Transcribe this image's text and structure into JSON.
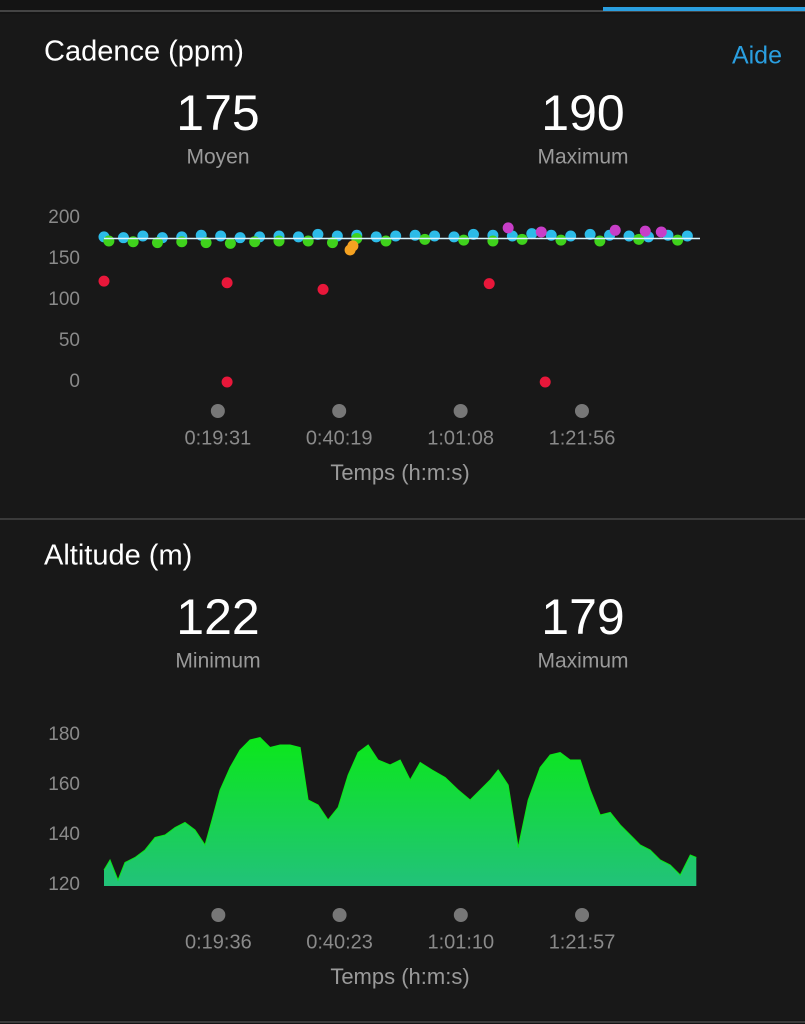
{
  "help": "Aide",
  "chart_data": [
    {
      "type": "scatter",
      "title": "Cadence (ppm)",
      "stats": [
        {
          "value": 175,
          "label": "Moyen"
        },
        {
          "value": 190,
          "label": "Maximum"
        }
      ],
      "x_label": "Temps (h:m:s)",
      "xlim": [
        0,
        6130
      ],
      "xticks": [
        {
          "value": 1171,
          "label": "0:19:31"
        },
        {
          "value": 2419,
          "label": "0:40:19"
        },
        {
          "value": 3668,
          "label": "1:01:08"
        },
        {
          "value": 4916,
          "label": "1:21:56"
        }
      ],
      "ylim": [
        0,
        200
      ],
      "yticks": [
        0,
        50,
        100,
        150,
        200
      ],
      "series": [
        {
          "color": "#2cbbe8",
          "x": [
            0,
            200,
            400,
            600,
            800,
            1000,
            1200,
            1400,
            1600,
            1800,
            2000,
            2200,
            2400,
            2600,
            2800,
            3000,
            3200,
            3400,
            3600,
            3800,
            4000,
            4200,
            4400,
            4600,
            4800,
            5000,
            5200,
            5400,
            5600,
            5800,
            6000
          ],
          "values": [
            177,
            176,
            178,
            176,
            177,
            179,
            178,
            176,
            177,
            178,
            177,
            180,
            178,
            179,
            177,
            178,
            179,
            178,
            177,
            180,
            179,
            178,
            181,
            179,
            178,
            180,
            179,
            178,
            177,
            179,
            178
          ]
        },
        {
          "color": "#3fd21c",
          "x": [
            50,
            300,
            550,
            800,
            1050,
            1300,
            1550,
            1800,
            2100,
            2350,
            2600,
            2900,
            3300,
            3700,
            4000,
            4300,
            4700,
            5100,
            5500,
            5900
          ],
          "values": [
            172,
            171,
            170,
            171,
            170,
            169,
            171,
            172,
            172,
            170,
            175,
            172,
            174,
            173,
            172,
            174,
            173,
            172,
            174,
            173
          ]
        },
        {
          "color": "#f5a221",
          "x": [
            2531,
            2560
          ],
          "values": [
            161,
            166
          ]
        },
        {
          "color": "#c83ec8",
          "x": [
            4157,
            4497,
            5258,
            5567,
            5732
          ],
          "values": [
            188,
            183,
            185,
            184,
            183
          ]
        },
        {
          "color": "#e8173a",
          "x": [
            0,
            1266,
            2253,
            3962,
            1266,
            4538
          ],
          "values": [
            123,
            121,
            113,
            120,
            0,
            0
          ]
        }
      ]
    },
    {
      "type": "area",
      "title": "Altitude (m)",
      "stats": [
        {
          "value": 122,
          "label": "Minimum"
        },
        {
          "value": 179,
          "label": "Maximum"
        }
      ],
      "x_label": "Temps (h:m:s)",
      "xlim": [
        0,
        6130
      ],
      "xticks": [
        {
          "value": 1176,
          "label": "0:19:36"
        },
        {
          "value": 2423,
          "label": "0:40:23"
        },
        {
          "value": 3670,
          "label": "1:01:10"
        },
        {
          "value": 4917,
          "label": "1:21:57"
        }
      ],
      "ylim": [
        120,
        180
      ],
      "yticks": [
        120,
        140,
        160,
        180
      ],
      "color": "#0be81a",
      "color_bottom": "#22c27a",
      "x": [
        0,
        62,
        144,
        216,
        319,
        422,
        525,
        628,
        731,
        833,
        936,
        1039,
        1111,
        1194,
        1297,
        1399,
        1502,
        1605,
        1708,
        1811,
        1914,
        2017,
        2099,
        2202,
        2305,
        2408,
        2511,
        2614,
        2717,
        2819,
        2943,
        3046,
        3149,
        3252,
        3375,
        3509,
        3643,
        3766,
        3869,
        3972,
        4054,
        4157,
        4260,
        4363,
        4486,
        4589,
        4692,
        4795,
        4898,
        5001,
        5104,
        5207,
        5310,
        5413,
        5515,
        5618,
        5721,
        5824,
        5927,
        6030,
        6092
      ],
      "values": [
        126,
        130,
        122,
        129,
        131,
        134,
        139,
        140,
        143,
        145,
        142,
        136,
        146,
        158,
        167,
        174,
        178,
        179,
        175,
        176,
        176,
        175,
        154,
        152,
        146,
        151,
        164,
        173,
        176,
        170,
        168,
        170,
        162,
        169,
        166,
        163,
        158,
        154,
        158,
        162,
        166,
        160,
        135,
        154,
        167,
        172,
        173,
        170,
        170,
        158,
        148,
        149,
        144,
        140,
        136,
        134,
        130,
        128,
        124,
        132,
        131
      ]
    }
  ]
}
